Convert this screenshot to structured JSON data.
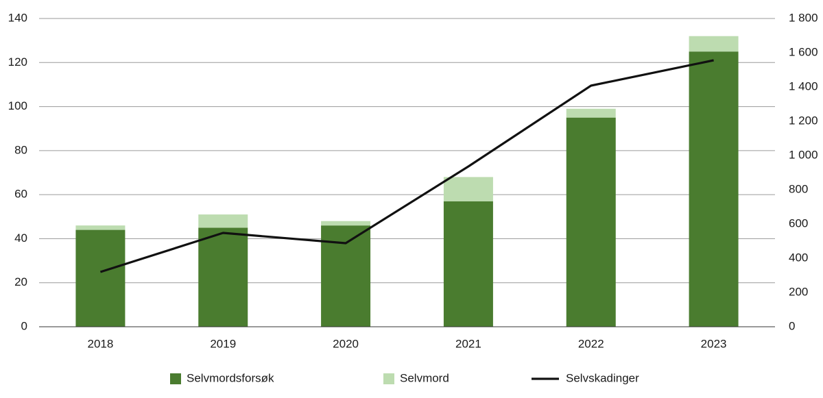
{
  "chart_data": {
    "type": "bar",
    "categories": [
      "2018",
      "2019",
      "2020",
      "2021",
      "2022",
      "2023"
    ],
    "series": [
      {
        "name": "Selvmordsforsøk",
        "color": "#4a7c2f",
        "values": [
          44,
          45,
          46,
          57,
          95,
          125
        ]
      },
      {
        "name": "Selvmord",
        "color": "#bddcb0",
        "values": [
          2,
          6,
          2,
          11,
          4,
          7
        ]
      },
      {
        "name": "Selvskadinger",
        "color": "#111111",
        "type": "line",
        "axis": "y2",
        "values": [
          320,
          548,
          488,
          936,
          1408,
          1556
        ]
      }
    ],
    "stacked": true,
    "ylim": [
      0,
      140
    ],
    "yticks": [
      0,
      20,
      40,
      60,
      80,
      100,
      120,
      140
    ],
    "y2lim": [
      0,
      1800
    ],
    "y2ticks": [
      0,
      200,
      400,
      600,
      800,
      {
        "value": 1000,
        "label": "1 000"
      },
      {
        "value": 1200,
        "label": "1 200"
      },
      {
        "value": 1400,
        "label": "1 400"
      },
      {
        "value": 1600,
        "label": "1 600"
      },
      {
        "value": 1800,
        "label": "1 800"
      }
    ],
    "grid": true,
    "legend": "bottom"
  }
}
